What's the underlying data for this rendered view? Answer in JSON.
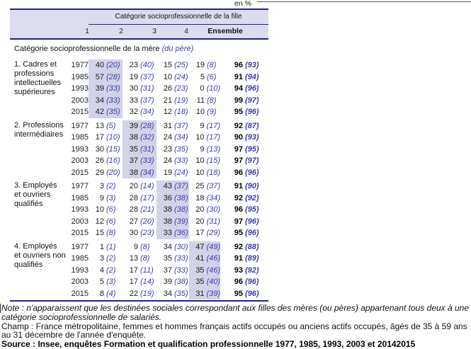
{
  "meta": {
    "unit_label": "en %"
  },
  "colors": {
    "rule_navy": "#23238c",
    "paren_blue": "#3c3cae",
    "header_band": "#dcdcee",
    "highlight_band": "#d2d2e9"
  },
  "table": {
    "col_group_header": "Catégorie socioprofessionnelle de la fille",
    "columns": [
      "1",
      "2",
      "3",
      "4",
      "Ensemble"
    ],
    "row_header": "Catégorie socioprofessionnelle de la mère",
    "row_header_note": "(du père)",
    "blocks": [
      {
        "label": "1. Cadres et\nprofessions\nintellectuelles\nsupérieures",
        "highlight_col": 0,
        "rows": [
          {
            "year": "1977",
            "cells": [
              [
                "40",
                "(20)"
              ],
              [
                "23",
                "(40)"
              ],
              [
                "15",
                "(25)"
              ],
              [
                "19",
                "(8)"
              ],
              [
                "96",
                "(93)"
              ]
            ]
          },
          {
            "year": "1985",
            "cells": [
              [
                "57",
                "(28)"
              ],
              [
                "19",
                "(37)"
              ],
              [
                "10",
                "(24)"
              ],
              [
                "5",
                "(6)"
              ],
              [
                "91",
                "(94)"
              ]
            ]
          },
          {
            "year": "1993",
            "cells": [
              [
                "39",
                "(33)"
              ],
              [
                "30",
                "(31)"
              ],
              [
                "26",
                "(23)"
              ],
              [
                "0",
                "(10)"
              ],
              [
                "94",
                "(96)"
              ]
            ]
          },
          {
            "year": "2003",
            "cells": [
              [
                "34",
                "(33)"
              ],
              [
                "33",
                "(37)"
              ],
              [
                "21",
                "(19)"
              ],
              [
                "11",
                "(8)"
              ],
              [
                "99",
                "(97)"
              ]
            ]
          },
          {
            "year": "2015",
            "cells": [
              [
                "42",
                "(35)"
              ],
              [
                "32",
                "(34)"
              ],
              [
                "12",
                "(18)"
              ],
              [
                "10",
                "(9)"
              ],
              [
                "95",
                "(96)"
              ]
            ]
          }
        ]
      },
      {
        "label": "2. Professions\nintermédiaires",
        "highlight_col": 1,
        "rows": [
          {
            "year": "1977",
            "cells": [
              [
                "13",
                "(5)"
              ],
              [
                "39",
                "(28)"
              ],
              [
                "31",
                "(37)"
              ],
              [
                "9",
                "(17)"
              ],
              [
                "92",
                "(87)"
              ]
            ]
          },
          {
            "year": "1985",
            "cells": [
              [
                "17",
                "(10)"
              ],
              [
                "38",
                "(32)"
              ],
              [
                "24",
                "(34)"
              ],
              [
                "10",
                "(17)"
              ],
              [
                "90",
                "(93)"
              ]
            ]
          },
          {
            "year": "1993",
            "cells": [
              [
                "30",
                "(15)"
              ],
              [
                "35",
                "(31)"
              ],
              [
                "23",
                "(35)"
              ],
              [
                "9",
                "(13)"
              ],
              [
                "97",
                "(95)"
              ]
            ]
          },
          {
            "year": "2003",
            "cells": [
              [
                "26",
                "(16)"
              ],
              [
                "37",
                "(33)"
              ],
              [
                "24",
                "(33)"
              ],
              [
                "10",
                "(15)"
              ],
              [
                "97",
                "(97)"
              ]
            ]
          },
          {
            "year": "2015",
            "cells": [
              [
                "29",
                "(20)"
              ],
              [
                "38",
                "(34)"
              ],
              [
                "19",
                "(24)"
              ],
              [
                "10",
                "(18)"
              ],
              [
                "96",
                "(96)"
              ]
            ]
          }
        ]
      },
      {
        "label": "3. Employés\net ouvriers\nqualifiés",
        "highlight_col": 2,
        "rows": [
          {
            "year": "1977",
            "cells": [
              [
                "3",
                "(2)"
              ],
              [
                "20",
                "(14)"
              ],
              [
                "43",
                "(37)"
              ],
              [
                "25",
                "(37)"
              ],
              [
                "91",
                "(90)"
              ]
            ]
          },
          {
            "year": "1985",
            "cells": [
              [
                "9",
                "(3)"
              ],
              [
                "28",
                "(17)"
              ],
              [
                "36",
                "(38)"
              ],
              [
                "18",
                "(34)"
              ],
              [
                "92",
                "(92)"
              ]
            ]
          },
          {
            "year": "1993",
            "cells": [
              [
                "10",
                "(6)"
              ],
              [
                "28",
                "(21)"
              ],
              [
                "38",
                "(38)"
              ],
              [
                "20",
                "(30)"
              ],
              [
                "96",
                "(95)"
              ]
            ]
          },
          {
            "year": "2003",
            "cells": [
              [
                "12",
                "(6)"
              ],
              [
                "27",
                "(20)"
              ],
              [
                "38",
                "(39)"
              ],
              [
                "20",
                "(31)"
              ],
              [
                "97",
                "(96)"
              ]
            ]
          },
          {
            "year": "2015",
            "cells": [
              [
                "15",
                "(8)"
              ],
              [
                "30",
                "(23)"
              ],
              [
                "33",
                "(36)"
              ],
              [
                "17",
                "(29)"
              ],
              [
                "95",
                "(96)"
              ]
            ]
          }
        ]
      },
      {
        "label": "4. Employés\net ouvriers non\nqualifiés",
        "highlight_col": 3,
        "rows": [
          {
            "year": "1977",
            "cells": [
              [
                "1",
                "(1)"
              ],
              [
                "9",
                "(8)"
              ],
              [
                "34",
                "(30)"
              ],
              [
                "47",
                "(49)"
              ],
              [
                "92",
                "(88)"
              ]
            ]
          },
          {
            "year": "1985",
            "cells": [
              [
                "3",
                "(2)"
              ],
              [
                "13",
                "(8)"
              ],
              [
                "35",
                "(33)"
              ],
              [
                "41",
                "(46)"
              ],
              [
                "91",
                "(89)"
              ]
            ]
          },
          {
            "year": "1993",
            "cells": [
              [
                "4",
                "(2)"
              ],
              [
                "17",
                "(11)"
              ],
              [
                "37",
                "(33)"
              ],
              [
                "35",
                "(46)"
              ],
              [
                "93",
                "(92)"
              ]
            ]
          },
          {
            "year": "2003",
            "cells": [
              [
                "5",
                "(3)"
              ],
              [
                "17",
                "(14)"
              ],
              [
                "39",
                "(38)"
              ],
              [
                "35",
                "(40)"
              ],
              [
                "96",
                "(96)"
              ]
            ]
          },
          {
            "year": "2015",
            "cells": [
              [
                "8",
                "(4)"
              ],
              [
                "22",
                "(19)"
              ],
              [
                "34",
                "(35)"
              ],
              [
                "31",
                "(39)"
              ],
              [
                "95",
                "(96)"
              ]
            ]
          }
        ]
      }
    ]
  },
  "footer": {
    "note": "Note : n'apparaissent que les destinées sociales correspondant aux filles des mères (ou pères) appartenant tous deux à une catégorie socioprofessionnelle de salariés.",
    "champ": "Champ : France métropolitaine, femmes et hommes français actifs occupés ou anciens actifs occupés, âgés de 35 à 59 ans au 31 décembre de l'année d'enquête.",
    "source": "Source : Insee, enquêtes Formation et qualification professionnelle 1977, 1985, 1993, 2003 et 20142015"
  }
}
